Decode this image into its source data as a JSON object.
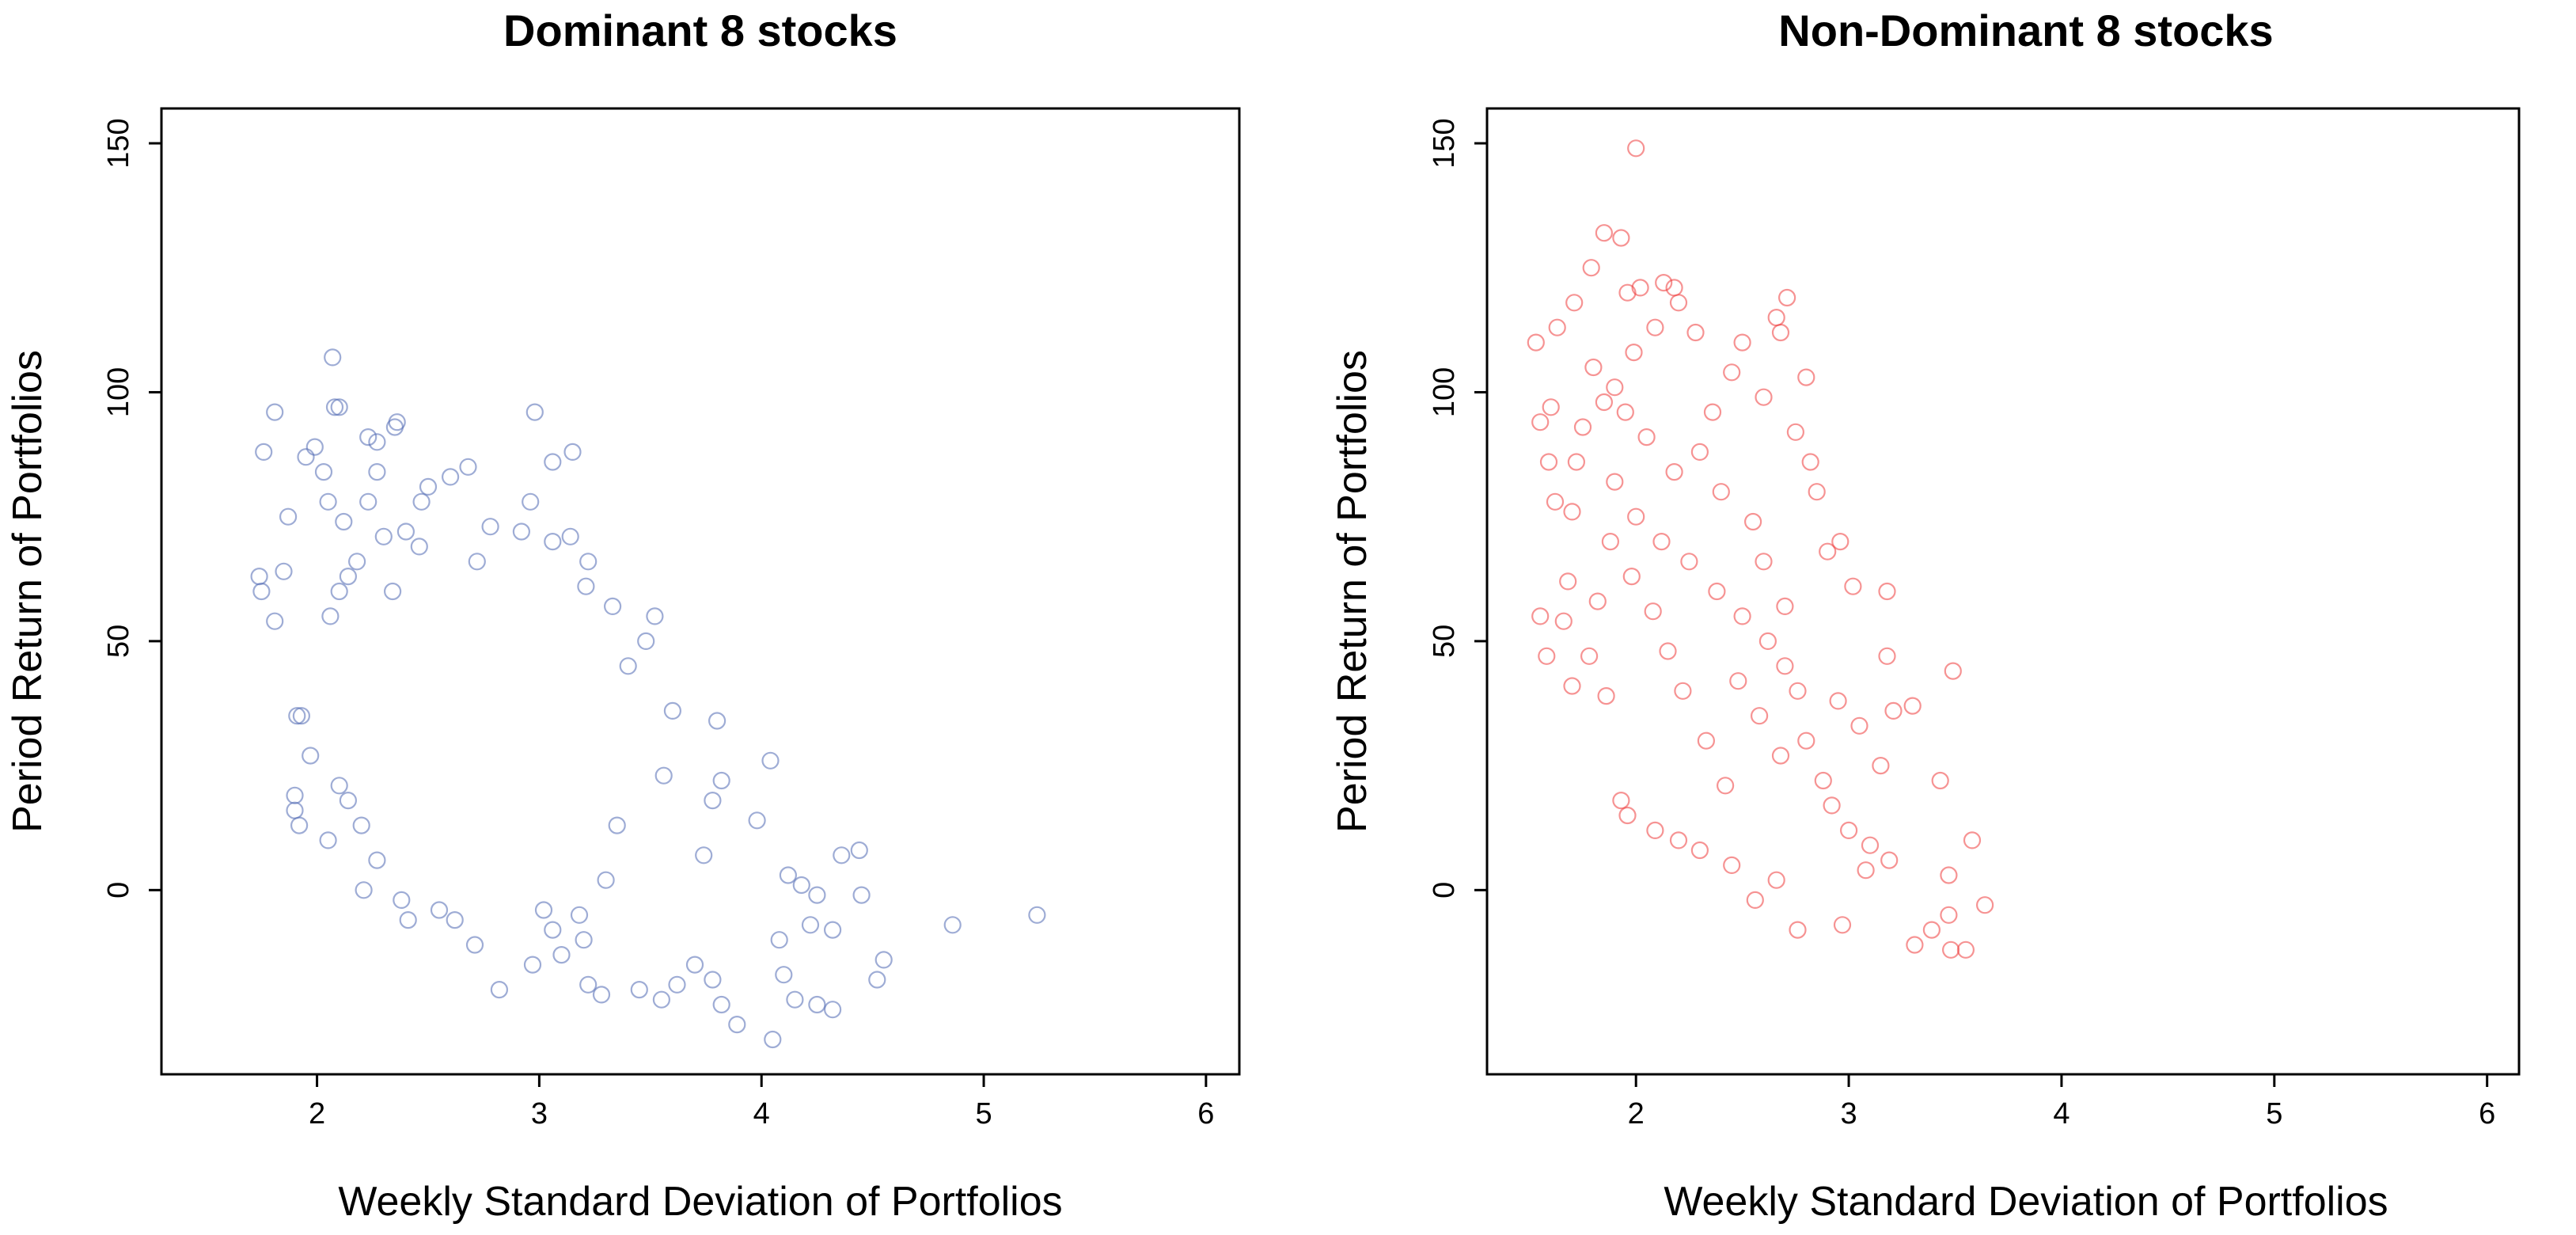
{
  "chart_data": [
    {
      "type": "scatter",
      "title": "Dominant 8 stocks",
      "xlabel": "Weekly Standard Deviation of Portfolios",
      "ylabel": "Period Return of Portfolios",
      "xlim": [
        1.3,
        6.15
      ],
      "ylim": [
        -37,
        157
      ],
      "xticks": [
        2,
        3,
        4,
        5,
        6
      ],
      "yticks": [
        0,
        50,
        100,
        150
      ],
      "marker_color": "#4f67b3",
      "series": [
        {
          "name": "Dominant 8 stocks",
          "points": [
            [
              1.76,
              88
            ],
            [
              1.81,
              96
            ],
            [
              1.95,
              87
            ],
            [
              1.99,
              89
            ],
            [
              2.07,
              107
            ],
            [
              2.08,
              97
            ],
            [
              2.1,
              97
            ],
            [
              2.23,
              91
            ],
            [
              2.27,
              90
            ],
            [
              2.35,
              93
            ],
            [
              2.36,
              94
            ],
            [
              2.5,
              81
            ],
            [
              2.6,
              83
            ],
            [
              2.68,
              85
            ],
            [
              2.98,
              96
            ],
            [
              3.06,
              86
            ],
            [
              3.15,
              88
            ],
            [
              3.14,
              71
            ],
            [
              3.21,
              61
            ],
            [
              1.74,
              63
            ],
            [
              1.75,
              60
            ],
            [
              1.81,
              54
            ],
            [
              1.85,
              64
            ],
            [
              1.87,
              75
            ],
            [
              1.91,
              35
            ],
            [
              1.93,
              35
            ],
            [
              1.9,
              19
            ],
            [
              1.9,
              16
            ],
            [
              1.92,
              13
            ],
            [
              1.97,
              27
            ],
            [
              2.05,
              10
            ],
            [
              2.1,
              21
            ],
            [
              2.14,
              18
            ],
            [
              2.2,
              13
            ],
            [
              2.21,
              0
            ],
            [
              2.27,
              6
            ],
            [
              2.38,
              -2
            ],
            [
              2.41,
              -6
            ],
            [
              2.55,
              -4
            ],
            [
              2.62,
              -6
            ],
            [
              2.71,
              -11
            ],
            [
              2.82,
              -20
            ],
            [
              2.97,
              -15
            ],
            [
              3.1,
              -13
            ],
            [
              3.22,
              -19
            ],
            [
              3.28,
              -21
            ],
            [
              3.45,
              -20
            ],
            [
              3.55,
              -22
            ],
            [
              3.62,
              -19
            ],
            [
              3.7,
              -15
            ],
            [
              3.78,
              -18
            ],
            [
              3.82,
              -23
            ],
            [
              3.89,
              -27
            ],
            [
              4.05,
              -30
            ],
            [
              4.1,
              -17
            ],
            [
              4.15,
              -22
            ],
            [
              4.25,
              -23
            ],
            [
              4.32,
              -24
            ],
            [
              4.55,
              -14
            ],
            [
              4.52,
              -18
            ],
            [
              4.86,
              -7
            ],
            [
              5.24,
              -5
            ],
            [
              4.44,
              8
            ],
            [
              4.45,
              -1
            ],
            [
              4.36,
              7
            ],
            [
              4.32,
              -8
            ],
            [
              4.25,
              -1
            ],
            [
              4.22,
              -7
            ],
            [
              4.18,
              1
            ],
            [
              4.12,
              3
            ],
            [
              4.08,
              -10
            ],
            [
              4.04,
              26
            ],
            [
              3.98,
              14
            ],
            [
              3.8,
              34
            ],
            [
              3.82,
              22
            ],
            [
              3.78,
              18
            ],
            [
              3.74,
              7
            ],
            [
              3.6,
              36
            ],
            [
              3.56,
              23
            ],
            [
              3.52,
              55
            ],
            [
              3.48,
              50
            ],
            [
              3.4,
              45
            ],
            [
              3.33,
              57
            ],
            [
              3.35,
              13
            ],
            [
              3.3,
              2
            ],
            [
              3.2,
              -10
            ],
            [
              3.18,
              -5
            ],
            [
              3.06,
              -8
            ],
            [
              3.02,
              -4
            ],
            [
              3.22,
              66
            ],
            [
              3.06,
              70
            ],
            [
              2.96,
              78
            ],
            [
              2.92,
              72
            ],
            [
              2.78,
              73
            ],
            [
              2.72,
              66
            ],
            [
              2.47,
              78
            ],
            [
              2.46,
              69
            ],
            [
              2.4,
              72
            ],
            [
              2.34,
              60
            ],
            [
              2.3,
              71
            ],
            [
              2.27,
              84
            ],
            [
              2.23,
              78
            ],
            [
              2.18,
              66
            ],
            [
              2.12,
              74
            ],
            [
              2.05,
              78
            ],
            [
              2.03,
              84
            ],
            [
              2.06,
              55
            ],
            [
              2.1,
              60
            ],
            [
              2.14,
              63
            ]
          ]
        }
      ]
    },
    {
      "type": "scatter",
      "title": "Non-Dominant 8 stocks",
      "xlabel": "Weekly Standard Deviation of Portfolios",
      "ylabel": "Period Return of Portfolios",
      "xlim": [
        1.3,
        6.15
      ],
      "ylim": [
        -37,
        157
      ],
      "xticks": [
        2,
        3,
        4,
        5,
        6
      ],
      "yticks": [
        0,
        50,
        100,
        150
      ],
      "marker_color": "#ee3b3b",
      "series": [
        {
          "name": "Non-Dominant 8 stocks",
          "points": [
            [
              2.0,
              149
            ],
            [
              1.85,
              132
            ],
            [
              1.93,
              131
            ],
            [
              1.79,
              125
            ],
            [
              2.02,
              121
            ],
            [
              2.13,
              122
            ],
            [
              2.18,
              121
            ],
            [
              2.2,
              118
            ],
            [
              2.71,
              119
            ],
            [
              2.66,
              115
            ],
            [
              2.68,
              112
            ],
            [
              2.8,
              103
            ],
            [
              1.71,
              118
            ],
            [
              1.63,
              113
            ],
            [
              1.53,
              110
            ],
            [
              1.55,
              94
            ],
            [
              1.6,
              97
            ],
            [
              1.59,
              86
            ],
            [
              1.62,
              78
            ],
            [
              1.55,
              55
            ],
            [
              1.58,
              47
            ],
            [
              1.7,
              41
            ],
            [
              1.86,
              39
            ],
            [
              1.93,
              18
            ],
            [
              1.96,
              15
            ],
            [
              2.09,
              12
            ],
            [
              2.2,
              10
            ],
            [
              2.3,
              8
            ],
            [
              2.45,
              5
            ],
            [
              2.56,
              -2
            ],
            [
              2.66,
              2
            ],
            [
              2.76,
              -8
            ],
            [
              2.97,
              -7
            ],
            [
              3.08,
              4
            ],
            [
              3.19,
              6
            ],
            [
              3.31,
              -11
            ],
            [
              3.39,
              -8
            ],
            [
              3.48,
              -12
            ],
            [
              3.47,
              -5
            ],
            [
              3.55,
              -12
            ],
            [
              3.64,
              -3
            ],
            [
              3.58,
              10
            ],
            [
              3.47,
              3
            ],
            [
              3.43,
              22
            ],
            [
              3.49,
              44
            ],
            [
              3.3,
              37
            ],
            [
              3.21,
              36
            ],
            [
              3.18,
              47
            ],
            [
              3.18,
              60
            ],
            [
              3.02,
              61
            ],
            [
              2.96,
              70
            ],
            [
              2.9,
              68
            ],
            [
              2.85,
              80
            ],
            [
              2.82,
              86
            ],
            [
              2.75,
              92
            ],
            [
              2.6,
              99
            ],
            [
              2.5,
              110
            ],
            [
              2.45,
              104
            ],
            [
              2.36,
              96
            ],
            [
              2.28,
              112
            ],
            [
              2.09,
              113
            ],
            [
              1.99,
              108
            ],
            [
              1.96,
              120
            ],
            [
              1.9,
              101
            ],
            [
              1.85,
              98
            ],
            [
              1.8,
              105
            ],
            [
              1.75,
              93
            ],
            [
              1.72,
              86
            ],
            [
              1.7,
              76
            ],
            [
              1.68,
              62
            ],
            [
              1.66,
              54
            ],
            [
              1.9,
              82
            ],
            [
              2.0,
              75
            ],
            [
              2.12,
              70
            ],
            [
              2.25,
              66
            ],
            [
              2.38,
              60
            ],
            [
              2.5,
              55
            ],
            [
              2.62,
              50
            ],
            [
              2.7,
              45
            ],
            [
              2.76,
              40
            ],
            [
              2.8,
              30
            ],
            [
              2.88,
              22
            ],
            [
              2.92,
              17
            ],
            [
              3.0,
              12
            ],
            [
              3.1,
              9
            ],
            [
              3.15,
              25
            ],
            [
              3.05,
              33
            ],
            [
              2.95,
              38
            ],
            [
              2.42,
              21
            ],
            [
              2.33,
              30
            ],
            [
              2.22,
              40
            ],
            [
              2.15,
              48
            ],
            [
              2.08,
              56
            ],
            [
              1.98,
              63
            ],
            [
              1.88,
              70
            ],
            [
              1.82,
              58
            ],
            [
              1.78,
              47
            ],
            [
              2.3,
              88
            ],
            [
              2.4,
              80
            ],
            [
              2.55,
              74
            ],
            [
              2.6,
              66
            ],
            [
              2.7,
              57
            ],
            [
              2.48,
              42
            ],
            [
              2.58,
              35
            ],
            [
              2.68,
              27
            ],
            [
              2.18,
              84
            ],
            [
              2.05,
              91
            ],
            [
              1.95,
              96
            ]
          ]
        }
      ]
    }
  ]
}
